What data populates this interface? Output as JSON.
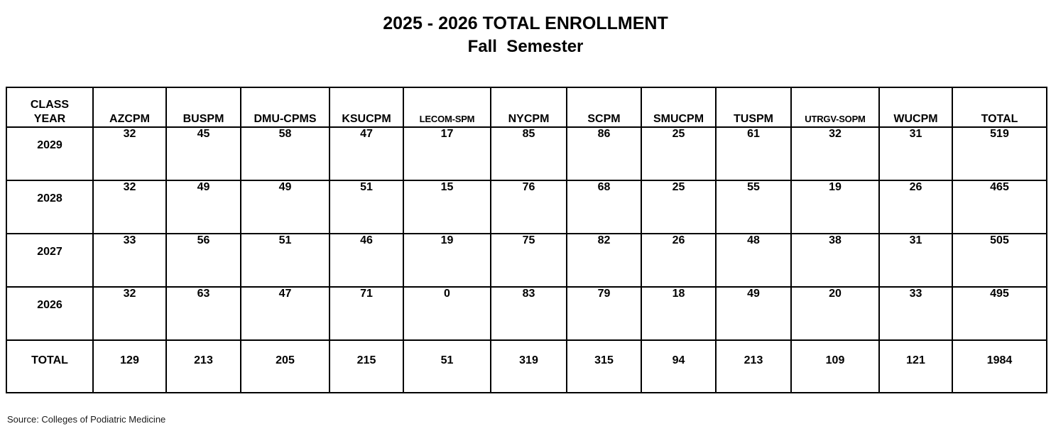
{
  "page": {
    "source": "Source: Colleges of Podiatric Medicine"
  },
  "chart_data": {
    "type": "table",
    "title": "2025 - 2026 TOTAL ENROLLMENT",
    "subtitle": "Fall  Semester",
    "columns": [
      "CLASS\nYEAR",
      "AZCPM",
      "BUSPM",
      "DMU-CPMS",
      "KSUCPM",
      "LECOM-SPM",
      "NYCPM",
      "SCPM",
      "SMUCPM",
      "TUSPM",
      "UTRGV-SOPM",
      "WUCPM",
      "TOTAL"
    ],
    "rows": [
      {
        "label": "2029",
        "values": [
          32,
          45,
          58,
          47,
          17,
          85,
          86,
          25,
          61,
          32,
          31,
          519
        ]
      },
      {
        "label": "2028",
        "values": [
          32,
          49,
          49,
          51,
          15,
          76,
          68,
          25,
          55,
          19,
          26,
          465
        ]
      },
      {
        "label": "2027",
        "values": [
          33,
          56,
          51,
          46,
          19,
          75,
          82,
          26,
          48,
          38,
          31,
          505
        ]
      },
      {
        "label": "2026",
        "values": [
          32,
          63,
          47,
          71,
          0,
          83,
          79,
          18,
          49,
          20,
          33,
          495
        ]
      }
    ],
    "totals_row": {
      "label": "TOTAL",
      "values": [
        129,
        213,
        205,
        215,
        51,
        319,
        315,
        94,
        213,
        109,
        121,
        1984
      ]
    }
  }
}
